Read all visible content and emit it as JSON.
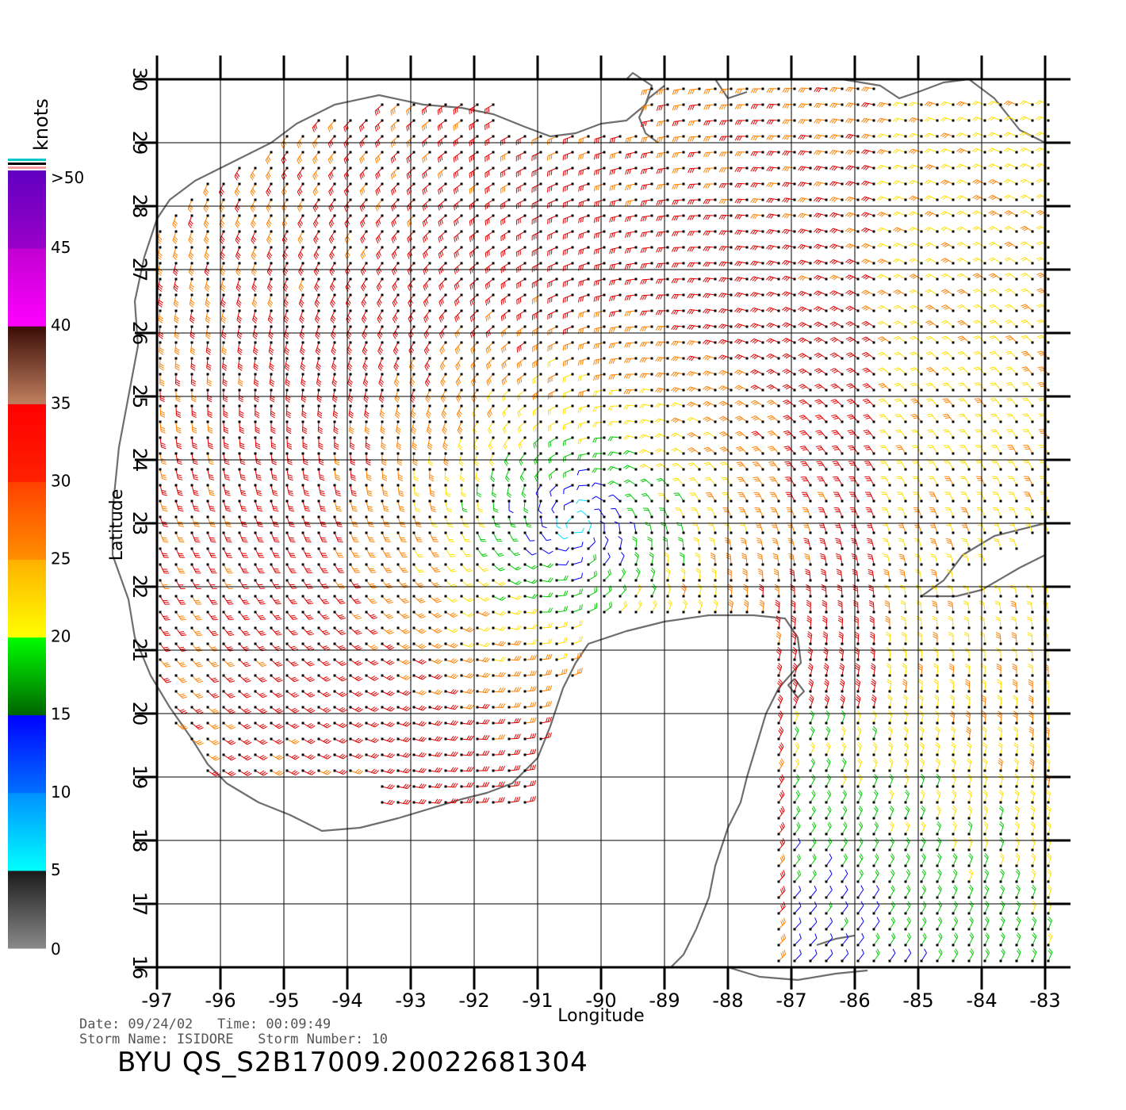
{
  "map": {
    "x_axis_label": "Longitude",
    "y_axis_label": "Latitude",
    "lon_ticks": [
      "-97",
      "-96",
      "-95",
      "-94",
      "-93",
      "-92",
      "-91",
      "-90",
      "-89",
      "-88",
      "-87",
      "-86",
      "-85",
      "-84",
      "-83"
    ],
    "lat_ticks": [
      "16",
      "17",
      "18",
      "19",
      "20",
      "21",
      "22",
      "23",
      "24",
      "25",
      "26",
      "27",
      "28",
      "29",
      "30"
    ],
    "lon_range": [
      -97,
      -83
    ],
    "lat_range": [
      16,
      30
    ],
    "grid": true,
    "storm_center": {
      "lon": -90.4,
      "lat": 23.0
    }
  },
  "colorbar": {
    "unit_label": "knots",
    "top_label": ">50",
    "tick_labels": [
      "5",
      "10",
      "15",
      "20",
      "25",
      "30",
      "35",
      "40",
      "45"
    ],
    "bottom_label": "0",
    "bands": [
      {
        "from": 0,
        "to": 5,
        "colors": [
          "#8a8a8a",
          "#1a1a1a"
        ]
      },
      {
        "from": 5,
        "to": 10,
        "colors": [
          "#00ffff",
          "#0090ff"
        ]
      },
      {
        "from": 10,
        "to": 15,
        "colors": [
          "#0070ff",
          "#0000ff"
        ]
      },
      {
        "from": 15,
        "to": 20,
        "colors": [
          "#006400",
          "#00ff00"
        ]
      },
      {
        "from": 20,
        "to": 25,
        "colors": [
          "#ffff00",
          "#ffb000"
        ]
      },
      {
        "from": 25,
        "to": 30,
        "colors": [
          "#ff9000",
          "#ff4000"
        ]
      },
      {
        "from": 30,
        "to": 35,
        "colors": [
          "#ff2000",
          "#ff0000"
        ]
      },
      {
        "from": 35,
        "to": 40,
        "colors": [
          "#c08060",
          "#3a0c06"
        ]
      },
      {
        "from": 40,
        "to": 45,
        "colors": [
          "#ff00ff",
          "#c000d0"
        ]
      },
      {
        "from": 45,
        "to": 50,
        "colors": [
          "#9a00c8",
          "#6000c0"
        ]
      }
    ]
  },
  "info": {
    "date_line": "Date: 09/24/02   Time: 00:09:49",
    "storm_line": "Storm Name: ISIDORE   Storm Number: 10",
    "product_id": "BYU QS_S2B17009.20022681304"
  },
  "colors": {
    "coast": "#6e6e6e",
    "grid": "#000000",
    "wind_calm": "#333333",
    "wind_light": "#00e0ff",
    "wind_blue": "#0000ff",
    "wind_green": "#00cc00",
    "wind_yellow": "#ffe000",
    "wind_orange": "#ff8000",
    "wind_red": "#e00000",
    "wind_brown": "#8b4513",
    "wind_magenta": "#cc00cc"
  }
}
